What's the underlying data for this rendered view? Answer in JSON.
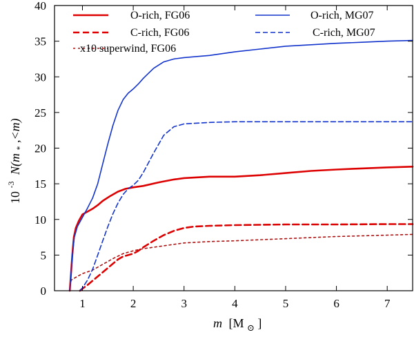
{
  "chart_data": {
    "type": "line",
    "title": "",
    "xlabel": {
      "var": "m",
      "unit_open": "[M",
      "unit_sub": "⊙",
      "unit_close": "]"
    },
    "ylabel": {
      "prefix": "10",
      "exp": "-3",
      "expr": "N(m",
      "sub": "*",
      "rest": ",<m)"
    },
    "xlim": [
      0.45,
      7.5
    ],
    "ylim": [
      0,
      40
    ],
    "xticks": [
      1,
      2,
      3,
      4,
      5,
      6,
      7
    ],
    "xtick_labels": [
      "1",
      "2",
      "3",
      "4",
      "5",
      "6",
      "7"
    ],
    "yticks": [
      0,
      5,
      10,
      15,
      20,
      25,
      30,
      35,
      40
    ],
    "ytick_labels": [
      "0",
      "5",
      "10",
      "15",
      "20",
      "25",
      "30",
      "35",
      "40"
    ],
    "grid": false,
    "legend_placement": "top, two columns",
    "series": [
      {
        "name": "O-rich, FG06",
        "color": "#dd0000",
        "style": "solid",
        "width": "thick",
        "points": [
          [
            0.75,
            0
          ],
          [
            0.77,
            2
          ],
          [
            0.8,
            5
          ],
          [
            0.83,
            7.5
          ],
          [
            0.87,
            8.8
          ],
          [
            0.93,
            9.8
          ],
          [
            1.0,
            10.7
          ],
          [
            1.1,
            11.1
          ],
          [
            1.2,
            11.5
          ],
          [
            1.3,
            12.0
          ],
          [
            1.4,
            12.6
          ],
          [
            1.55,
            13.3
          ],
          [
            1.7,
            13.9
          ],
          [
            1.85,
            14.3
          ],
          [
            2.0,
            14.5
          ],
          [
            2.2,
            14.7
          ],
          [
            2.5,
            15.2
          ],
          [
            2.8,
            15.6
          ],
          [
            3.0,
            15.8
          ],
          [
            3.5,
            16.0
          ],
          [
            4.0,
            16.0
          ],
          [
            4.5,
            16.2
          ],
          [
            5.0,
            16.5
          ],
          [
            5.5,
            16.8
          ],
          [
            6.0,
            17.0
          ],
          [
            6.5,
            17.15
          ],
          [
            7.0,
            17.3
          ],
          [
            7.5,
            17.4
          ]
        ]
      },
      {
        "name": "C-rich, FG06",
        "color": "#dd0000",
        "style": "dashed",
        "width": "thick",
        "points": [
          [
            0.95,
            0
          ],
          [
            1.0,
            0.3
          ],
          [
            1.1,
            0.8
          ],
          [
            1.2,
            1.4
          ],
          [
            1.3,
            2.0
          ],
          [
            1.4,
            2.6
          ],
          [
            1.5,
            3.2
          ],
          [
            1.6,
            3.8
          ],
          [
            1.7,
            4.4
          ],
          [
            1.8,
            4.8
          ],
          [
            1.9,
            5.0
          ],
          [
            2.0,
            5.2
          ],
          [
            2.1,
            5.6
          ],
          [
            2.2,
            6.1
          ],
          [
            2.4,
            7.0
          ],
          [
            2.6,
            7.8
          ],
          [
            2.8,
            8.4
          ],
          [
            3.0,
            8.8
          ],
          [
            3.2,
            9.0
          ],
          [
            3.5,
            9.1
          ],
          [
            4.0,
            9.2
          ],
          [
            5.0,
            9.3
          ],
          [
            6.0,
            9.3
          ],
          [
            7.0,
            9.35
          ],
          [
            7.5,
            9.35
          ]
        ]
      },
      {
        "name": "x10 superwind, FG06",
        "color": "#aa1111",
        "style": "dotted",
        "width": "normal",
        "points": [
          [
            0.75,
            0
          ],
          [
            0.76,
            0.8
          ],
          [
            0.78,
            1.5
          ],
          [
            0.85,
            1.8
          ],
          [
            1.0,
            2.4
          ],
          [
            1.2,
            2.9
          ],
          [
            1.4,
            3.7
          ],
          [
            1.6,
            4.5
          ],
          [
            1.8,
            5.2
          ],
          [
            2.0,
            5.6
          ],
          [
            2.2,
            5.9
          ],
          [
            2.5,
            6.2
          ],
          [
            3.0,
            6.7
          ],
          [
            3.5,
            6.9
          ],
          [
            4.0,
            7.0
          ],
          [
            5.0,
            7.3
          ],
          [
            6.0,
            7.6
          ],
          [
            7.0,
            7.8
          ],
          [
            7.5,
            7.9
          ]
        ]
      },
      {
        "name": "O-rich, MG07",
        "color": "#1133cc",
        "style": "solid",
        "width": "normal",
        "points": [
          [
            0.75,
            0
          ],
          [
            0.77,
            2
          ],
          [
            0.8,
            5
          ],
          [
            0.84,
            7.5
          ],
          [
            0.9,
            9.0
          ],
          [
            1.0,
            10.3
          ],
          [
            1.1,
            11.6
          ],
          [
            1.2,
            13.0
          ],
          [
            1.3,
            15.0
          ],
          [
            1.4,
            17.8
          ],
          [
            1.5,
            20.6
          ],
          [
            1.6,
            23.2
          ],
          [
            1.7,
            25.3
          ],
          [
            1.8,
            26.8
          ],
          [
            1.9,
            27.7
          ],
          [
            2.0,
            28.3
          ],
          [
            2.1,
            29.0
          ],
          [
            2.2,
            29.8
          ],
          [
            2.4,
            31.2
          ],
          [
            2.6,
            32.1
          ],
          [
            2.8,
            32.5
          ],
          [
            3.0,
            32.7
          ],
          [
            3.5,
            33.0
          ],
          [
            4.0,
            33.5
          ],
          [
            4.5,
            33.9
          ],
          [
            5.0,
            34.3
          ],
          [
            5.5,
            34.5
          ],
          [
            6.0,
            34.7
          ],
          [
            6.5,
            34.85
          ],
          [
            7.0,
            35.0
          ],
          [
            7.5,
            35.1
          ]
        ]
      },
      {
        "name": "C-rich, MG07",
        "color": "#1133cc",
        "style": "dashed",
        "width": "normal",
        "points": [
          [
            0.95,
            0
          ],
          [
            1.0,
            0.4
          ],
          [
            1.1,
            1.5
          ],
          [
            1.2,
            3.0
          ],
          [
            1.3,
            5.0
          ],
          [
            1.4,
            7.0
          ],
          [
            1.5,
            9.0
          ],
          [
            1.6,
            10.8
          ],
          [
            1.7,
            12.3
          ],
          [
            1.8,
            13.5
          ],
          [
            1.9,
            14.3
          ],
          [
            2.0,
            14.8
          ],
          [
            2.1,
            15.5
          ],
          [
            2.2,
            16.6
          ],
          [
            2.4,
            19.3
          ],
          [
            2.6,
            21.8
          ],
          [
            2.8,
            23.0
          ],
          [
            3.0,
            23.4
          ],
          [
            3.5,
            23.6
          ],
          [
            4.0,
            23.7
          ],
          [
            5.0,
            23.7
          ],
          [
            6.0,
            23.7
          ],
          [
            7.0,
            23.7
          ],
          [
            7.5,
            23.7
          ]
        ]
      }
    ]
  }
}
